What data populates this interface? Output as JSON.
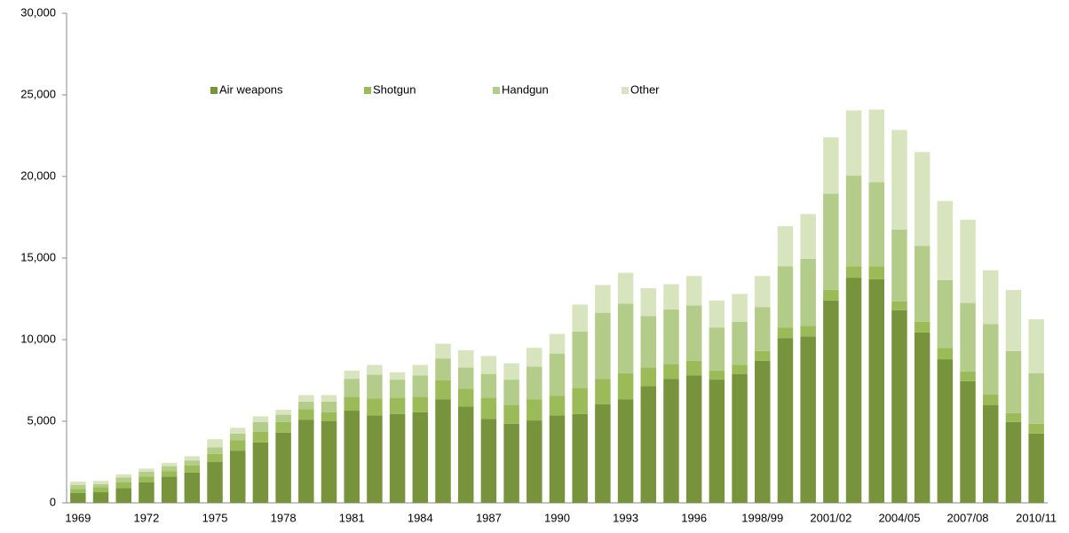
{
  "chart_data": {
    "type": "stacked-bar",
    "categories": [
      "1969",
      null,
      null,
      "1972",
      null,
      null,
      "1975",
      null,
      null,
      "1978",
      null,
      null,
      "1981",
      null,
      null,
      "1984",
      null,
      null,
      "1987",
      null,
      null,
      "1990",
      null,
      null,
      "1993",
      null,
      null,
      "1996",
      null,
      null,
      "1998/99",
      null,
      null,
      "2001/02",
      null,
      null,
      "2004/05",
      null,
      null,
      "2007/08",
      null,
      null,
      "2010/11"
    ],
    "series": [
      {
        "name": "Air weapons",
        "color": "#77933c",
        "values": [
          600,
          650,
          900,
          1250,
          1600,
          1850,
          2500,
          3200,
          3700,
          4300,
          5100,
          5000,
          5650,
          5350,
          5450,
          5550,
          6350,
          5900,
          5150,
          4850,
          5050,
          5350,
          5450,
          6050,
          6350,
          7150,
          7600,
          7800,
          7550,
          7900,
          8700,
          10100,
          10200,
          12400,
          13800,
          13700,
          11800,
          10450,
          8800,
          7450,
          6000,
          4950,
          4250
        ]
      },
      {
        "name": "Shotgun",
        "color": "#9bbb59",
        "values": [
          250,
          300,
          350,
          350,
          350,
          450,
          500,
          650,
          650,
          650,
          650,
          550,
          850,
          1050,
          1000,
          950,
          1150,
          1100,
          1300,
          1150,
          1300,
          1200,
          1600,
          1550,
          1600,
          1150,
          900,
          900,
          550,
          550,
          600,
          650,
          650,
          650,
          700,
          800,
          550,
          650,
          700,
          600,
          650,
          550,
          600
        ]
      },
      {
        "name": "Handgun",
        "color": "#b3cc8a",
        "values": [
          250,
          200,
          300,
          300,
          300,
          300,
          400,
          400,
          600,
          450,
          450,
          650,
          1100,
          1450,
          1100,
          1300,
          1350,
          1300,
          1450,
          1550,
          2000,
          2600,
          3450,
          4050,
          4250,
          3150,
          3350,
          3400,
          2650,
          2650,
          2700,
          3750,
          4100,
          5900,
          5550,
          5150,
          4400,
          4650,
          4150,
          4200,
          4300,
          3800,
          3100
        ]
      },
      {
        "name": "Other",
        "color": "#d7e4bd",
        "values": [
          200,
          200,
          200,
          200,
          200,
          250,
          500,
          350,
          350,
          300,
          400,
          400,
          500,
          600,
          450,
          650,
          900,
          1050,
          1100,
          1000,
          1150,
          1200,
          1650,
          1700,
          1900,
          1700,
          1550,
          1800,
          1650,
          1700,
          1900,
          2450,
          2750,
          3450,
          4000,
          4450,
          6100,
          5750,
          4850,
          5100,
          3300,
          3750,
          3300
        ]
      }
    ],
    "ylim": [
      0,
      30000
    ],
    "yticks": [
      0,
      {
        "value": 5000,
        "label": "5,000"
      },
      {
        "value": 10000,
        "label": "10,000"
      },
      {
        "value": 15000,
        "label": "15,000"
      },
      {
        "value": 20000,
        "label": "20,000"
      },
      {
        "value": 25000,
        "label": "25,000"
      },
      {
        "value": 30000,
        "label": "30,000"
      }
    ],
    "grid": false
  }
}
